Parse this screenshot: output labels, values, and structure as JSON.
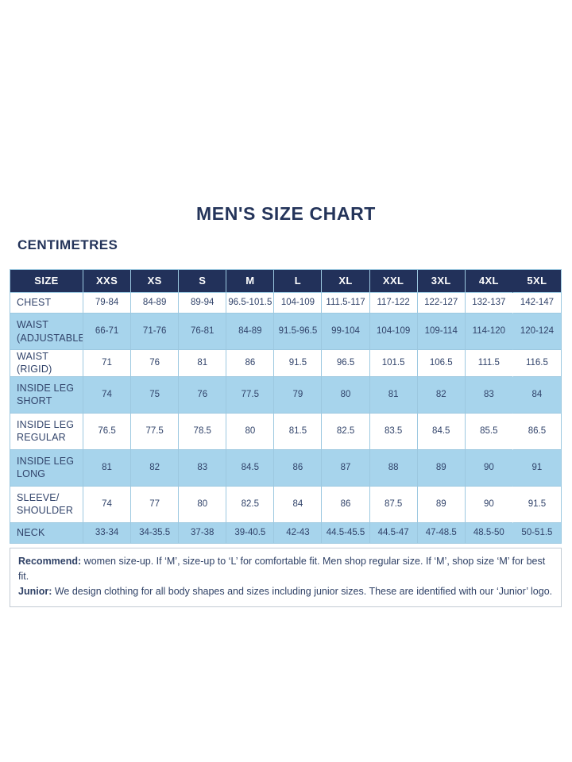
{
  "page": {
    "title": "MEN'S SIZE CHART",
    "unit_label": "CENTIMETRES"
  },
  "colors": {
    "header_bg": "#22315a",
    "header_text": "#ffffff",
    "row_blue": "#a7d4ec",
    "row_white": "#ffffff",
    "grid_border": "#9cc8e0",
    "text_navy": "#2f4166"
  },
  "table": {
    "columns": [
      "SIZE",
      "XXS",
      "XS",
      "S",
      "M",
      "L",
      "XL",
      "XXL",
      "3XL",
      "4XL",
      "5XL"
    ],
    "rows": [
      {
        "label": "CHEST",
        "values": [
          "79-84",
          "84-89",
          "89-94",
          "96.5-101.5",
          "104-109",
          "111.5-117",
          "117-122",
          "122-127",
          "132-137",
          "142-147"
        ]
      },
      {
        "label": "WAIST\n(ADJUSTABLE)",
        "values": [
          "66-71",
          "71-76",
          "76-81",
          "84-89",
          "91.5-96.5",
          "99-104",
          "104-109",
          "109-114",
          "114-120",
          "120-124"
        ]
      },
      {
        "label": "WAIST (RIGID)",
        "values": [
          "71",
          "76",
          "81",
          "86",
          "91.5",
          "96.5",
          "101.5",
          "106.5",
          "111.5",
          "116.5"
        ]
      },
      {
        "label": "INSIDE LEG\nSHORT",
        "values": [
          "74",
          "75",
          "76",
          "77.5",
          "79",
          "80",
          "81",
          "82",
          "83",
          "84"
        ]
      },
      {
        "label": "INSIDE LEG\nREGULAR",
        "values": [
          "76.5",
          "77.5",
          "78.5",
          "80",
          "81.5",
          "82.5",
          "83.5",
          "84.5",
          "85.5",
          "86.5"
        ]
      },
      {
        "label": "INSIDE LEG\nLONG",
        "values": [
          "81",
          "82",
          "83",
          "84.5",
          "86",
          "87",
          "88",
          "89",
          "90",
          "91"
        ]
      },
      {
        "label": "SLEEVE/\nSHOULDER",
        "values": [
          "74",
          "77",
          "80",
          "82.5",
          "84",
          "86",
          "87.5",
          "89",
          "90",
          "91.5"
        ]
      },
      {
        "label": "NECK",
        "values": [
          "33-34",
          "34-35.5",
          "37-38",
          "39-40.5",
          "42-43",
          "44.5-45.5",
          "44.5-47",
          "47-48.5",
          "48.5-50",
          "50-51.5"
        ]
      }
    ]
  },
  "notes": {
    "recommend_label": "Recommend:",
    "recommend_text": "women size-up. If ‘M’, size-up to ‘L’ for comfortable fit. Men shop regular size. If ‘M’, shop size ‘M’ for best fit.",
    "junior_label": "Junior:",
    "junior_text": "We design clothing for all body shapes and sizes including junior sizes. These are identified with our ‘Junior’ logo."
  }
}
